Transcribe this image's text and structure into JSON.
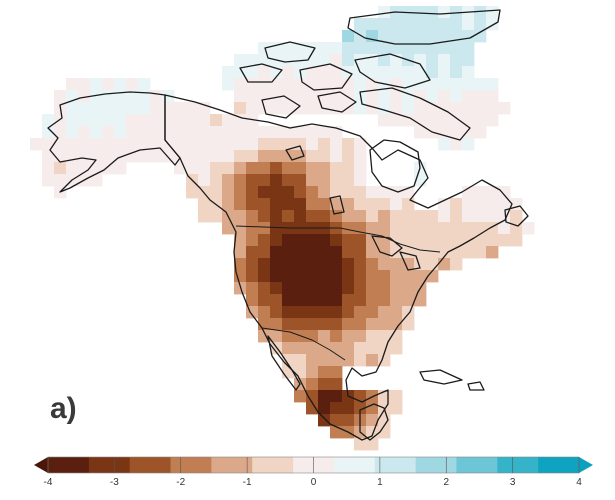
{
  "panel_label": "a)",
  "colorbar": {
    "ticks": [
      -4,
      -3,
      -2,
      -1,
      0,
      1,
      2,
      3,
      4
    ],
    "tick_labels": [
      "-4",
      "-3",
      "-2",
      "-1",
      "0",
      "1",
      "2",
      "3",
      "4"
    ],
    "colors": [
      "#5a1f0e",
      "#7a3515",
      "#9c5428",
      "#c07e52",
      "#dba98a",
      "#f0d4c4",
      "#f6ecec",
      "#e8f4f6",
      "#cbe8ee",
      "#9fd8e2",
      "#6cc6d6",
      "#34b3c9",
      "#0ea3c1"
    ]
  },
  "map_regions": [
    {
      "name": "Alaska",
      "value": 0.3
    },
    {
      "name": "Northern Canada",
      "value": 0.2
    },
    {
      "name": "Canadian Arctic Archipelago",
      "value": 1.2
    },
    {
      "name": "Canadian Prairies",
      "value": -1.8
    },
    {
      "name": "US Great Plains",
      "value": -3.5
    },
    {
      "name": "US Southwest",
      "value": -2.5
    },
    {
      "name": "Eastern US",
      "value": -1.3
    },
    {
      "name": "Northeast US",
      "value": -0.8
    },
    {
      "name": "Quebec / Labrador",
      "value": 0.3
    },
    {
      "name": "Mexico",
      "value": -3.2
    },
    {
      "name": "Central America",
      "value": -3.0
    }
  ]
}
